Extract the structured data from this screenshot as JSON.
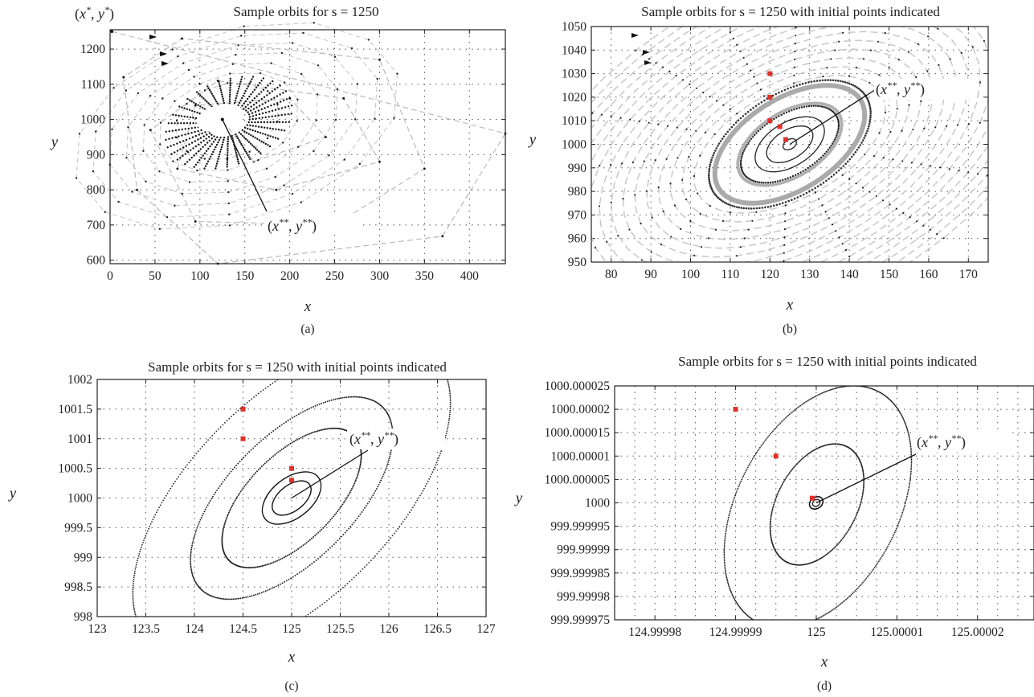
{
  "figure": {
    "panels": [
      {
        "id": "a",
        "caption": "(a)",
        "title": "Sample orbits for s = 1250",
        "xlabel": "x",
        "ylabel": "y",
        "x_ticks": [
          "0",
          "50",
          "100",
          "150",
          "200",
          "250",
          "300",
          "350",
          "400"
        ],
        "y_ticks": [
          "600",
          "700",
          "800",
          "900",
          "1000",
          "1100",
          "1200"
        ],
        "annotations": [
          "(x*, y*)",
          "(x**, y**)"
        ]
      },
      {
        "id": "b",
        "caption": "(b)",
        "title": "Sample orbits for s = 1250 with initial points indicated",
        "xlabel": "x",
        "ylabel": "y",
        "x_ticks": [
          "80",
          "90",
          "100",
          "110",
          "120",
          "130",
          "140",
          "150",
          "160",
          "170"
        ],
        "y_ticks": [
          "950",
          "960",
          "970",
          "980",
          "990",
          "1000",
          "1010",
          "1020",
          "1030",
          "1040",
          "1050"
        ],
        "annotations": [
          "(x**, y**)"
        ]
      },
      {
        "id": "c",
        "caption": "(c)",
        "title": "Sample orbits for s = 1250 with initial points indicated",
        "xlabel": "x",
        "ylabel": "y",
        "x_ticks": [
          "123",
          "123.5",
          "124",
          "124.5",
          "125",
          "125.5",
          "126",
          "126.5",
          "127"
        ],
        "y_ticks": [
          "998",
          "998.5",
          "999",
          "999.5",
          "1000",
          "1000.5",
          "1001",
          "1001.5",
          "1002"
        ],
        "annotations": [
          "(x**, y**)"
        ]
      },
      {
        "id": "d",
        "caption": "(d)",
        "title": "Sample orbits for s = 1250 with initial points indicated",
        "xlabel": "x",
        "ylabel": "y",
        "x_ticks": [
          "124.99998",
          "124.99999",
          "125",
          "125.00001",
          "125.00002"
        ],
        "y_ticks": [
          "999.999975",
          "999.99998",
          "999.999985",
          "999.99999",
          "999.999995",
          "1000",
          "1000.000005",
          "1000.00001",
          "1000.000015",
          "1000.00002",
          "1000.000025"
        ],
        "annotations": [
          "(x**, y**)"
        ]
      }
    ]
  },
  "chart_data": [
    {
      "type": "scatter",
      "title": "Sample orbits for s = 1250",
      "xlabel": "x",
      "ylabel": "y",
      "xlim": [
        0,
        440
      ],
      "ylim": [
        590,
        1255
      ],
      "grid": true,
      "equilibrium": {
        "x": 125,
        "y": 1000
      },
      "initial_point": {
        "x": 2,
        "y": 1250
      },
      "series": [
        {
          "values": [
            {
              "x": 2,
              "y": 1250
            },
            {
              "x": 440,
              "y": 960
            },
            {
              "x": 370,
              "y": 668
            },
            {
              "x": 120,
              "y": 590
            },
            {
              "x": 30,
              "y": 800
            },
            {
              "x": 15,
              "y": 1120
            },
            {
              "x": 80,
              "y": 1230
            },
            {
              "x": 300,
              "y": 1170
            },
            {
              "x": 350,
              "y": 860
            },
            {
              "x": 250,
              "y": 700
            },
            {
              "x": 95,
              "y": 710
            },
            {
              "x": 45,
              "y": 970
            },
            {
              "x": 120,
              "y": 1110
            },
            {
              "x": 260,
              "y": 1060
            },
            {
              "x": 300,
              "y": 880
            },
            {
              "x": 185,
              "y": 800
            },
            {
              "x": 75,
              "y": 860
            },
            {
              "x": 95,
              "y": 1040
            },
            {
              "x": 200,
              "y": 1060
            },
            {
              "x": 240,
              "y": 950
            },
            {
              "x": 160,
              "y": 880
            },
            {
              "x": 125,
              "y": 1000
            }
          ]
        }
      ]
    },
    {
      "type": "scatter",
      "title": "Sample orbits for s = 1250 with initial points indicated",
      "xlabel": "x",
      "ylabel": "y",
      "xlim": [
        75,
        175
      ],
      "ylim": [
        950,
        1050
      ],
      "grid": true,
      "equilibrium": {
        "x": 125,
        "y": 1000
      },
      "initial_points": [
        {
          "x": 120,
          "y": 1030
        },
        {
          "x": 120,
          "y": 1020
        },
        {
          "x": 120,
          "y": 1010
        },
        {
          "x": 122.5,
          "y": 1007.5
        },
        {
          "x": 124,
          "y": 1002
        }
      ]
    },
    {
      "type": "scatter",
      "title": "Sample orbits for s = 1250 with initial points indicated",
      "xlabel": "x",
      "ylabel": "y",
      "xlim": [
        123,
        127
      ],
      "ylim": [
        998,
        1002
      ],
      "grid": true,
      "equilibrium": {
        "x": 125,
        "y": 1000
      },
      "initial_points": [
        {
          "x": 124.5,
          "y": 1001.5
        },
        {
          "x": 124.5,
          "y": 1001
        },
        {
          "x": 125,
          "y": 1000.5
        },
        {
          "x": 125,
          "y": 1000.3
        }
      ]
    },
    {
      "type": "scatter",
      "title": "Sample orbits for s = 1250 with initial points indicated",
      "xlabel": "x",
      "ylabel": "y",
      "xlim": [
        124.999975,
        125.000027
      ],
      "ylim": [
        999.999975,
        1000.000025
      ],
      "grid": true,
      "equilibrium": {
        "x": 125,
        "y": 1000
      },
      "initial_points": [
        {
          "x": 124.99999,
          "y": 1000.00002
        },
        {
          "x": 124.999995,
          "y": 1000.00001
        },
        {
          "x": 124.9999995,
          "y": 1000.000001
        }
      ]
    }
  ]
}
